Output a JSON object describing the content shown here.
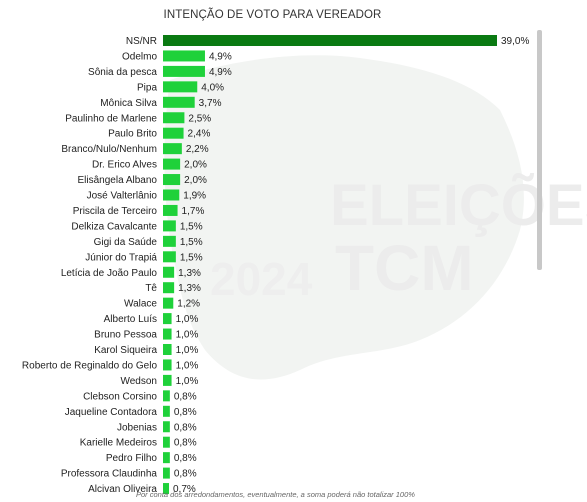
{
  "title": "INTENÇÃO DE VOTO PARA VEREADOR",
  "footnote": "Por conta dos arredondamentos, eventualmente, a soma poderá não totalizar 100%",
  "colors": {
    "highlight_bar": "#0a7a12",
    "bar": "#1fd13a",
    "text": "#222222"
  },
  "watermark": {
    "year": "2024",
    "line1": "ELEIÇÕES",
    "line2": "TCM"
  },
  "chart_data": {
    "type": "bar",
    "orientation": "horizontal",
    "title": "INTENÇÃO DE VOTO PARA VEREADOR",
    "xlim": [
      0,
      39
    ],
    "value_suffix": "%",
    "categories": [
      "NS/NR",
      "Odelmo",
      "Sônia da pesca",
      "Pipa",
      "Mônica Silva",
      "Paulinho de Marlene",
      "Paulo Brito",
      "Branco/Nulo/Nenhum",
      "Dr. Erico Alves",
      "Elisângela Albano",
      "José Valterlânio",
      "Priscila de Terceiro",
      "Delkiza Cavalcante",
      "Gigi da Saúde",
      "Júnior do Trapiá",
      "Letícia de João Paulo",
      "Tê",
      "Walace",
      "Alberto Luís",
      "Bruno Pessoa",
      "Karol Siqueira",
      "Roberto de Reginaldo do Gelo",
      "Wedson",
      "Clebson Corsino",
      "Jaqueline Contadora",
      "Jobenias",
      "Karielle Medeiros",
      "Pedro Filho",
      "Professora Claudinha",
      "Alcivan Oliveira"
    ],
    "values": [
      39.0,
      4.9,
      4.9,
      4.0,
      3.7,
      2.5,
      2.4,
      2.2,
      2.0,
      2.0,
      1.9,
      1.7,
      1.5,
      1.5,
      1.5,
      1.3,
      1.3,
      1.2,
      1.0,
      1.0,
      1.0,
      1.0,
      1.0,
      0.8,
      0.8,
      0.8,
      0.8,
      0.8,
      0.8,
      0.7
    ],
    "value_labels": [
      "39,0%",
      "4,9%",
      "4,9%",
      "4,0%",
      "3,7%",
      "2,5%",
      "2,4%",
      "2,2%",
      "2,0%",
      "2,0%",
      "1,9%",
      "1,7%",
      "1,5%",
      "1,5%",
      "1,5%",
      "1,3%",
      "1,3%",
      "1,2%",
      "1,0%",
      "1,0%",
      "1,0%",
      "1,0%",
      "1,0%",
      "0,8%",
      "0,8%",
      "0,8%",
      "0,8%",
      "0,8%",
      "0,8%",
      "0,7%"
    ]
  }
}
